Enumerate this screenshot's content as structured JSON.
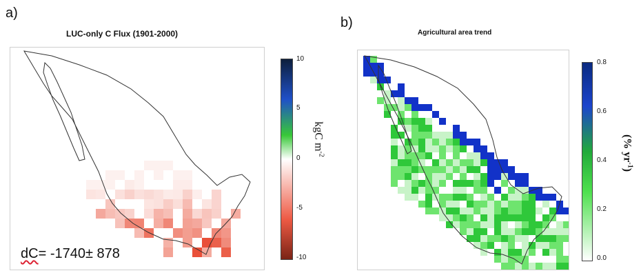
{
  "panel_a": {
    "label": "a)",
    "title": "LUC-only C Flux (1901-2000)",
    "colorbar": {
      "ticks": [
        "10",
        "5",
        "0",
        "-5",
        "-10"
      ],
      "unit_main": "kgC m",
      "unit_sup": "-2",
      "colors": {
        "max": "#0d1f3c",
        "high": "#1f50c8",
        "mid_high": "#38c838",
        "zero": "#ffffff",
        "mid_low": "#ee5a44",
        "min": "#7a2416"
      },
      "range": [
        -10,
        10
      ]
    },
    "annotation": {
      "first": "dC",
      "rest": "= -1740± 878"
    },
    "cell_color": "#e8472e"
  },
  "panel_b": {
    "label": "b)",
    "title": "Agricultural area trend",
    "colorbar": {
      "ticks": [
        "0.8",
        "0.6",
        "0.4",
        "0.2",
        "0.0"
      ],
      "unit": "(% yr",
      "unit_sup": "-1",
      "unit_close": ")",
      "colors": {
        "max": "#0a2a80",
        "high": "#1c44cc",
        "mid": "#22aa3a",
        "low": "#4ee04e",
        "min": "#ffffff"
      },
      "range": [
        0,
        0.8
      ]
    },
    "cell_color_low": "#43d843",
    "cell_color_high": "#1232c8"
  }
}
